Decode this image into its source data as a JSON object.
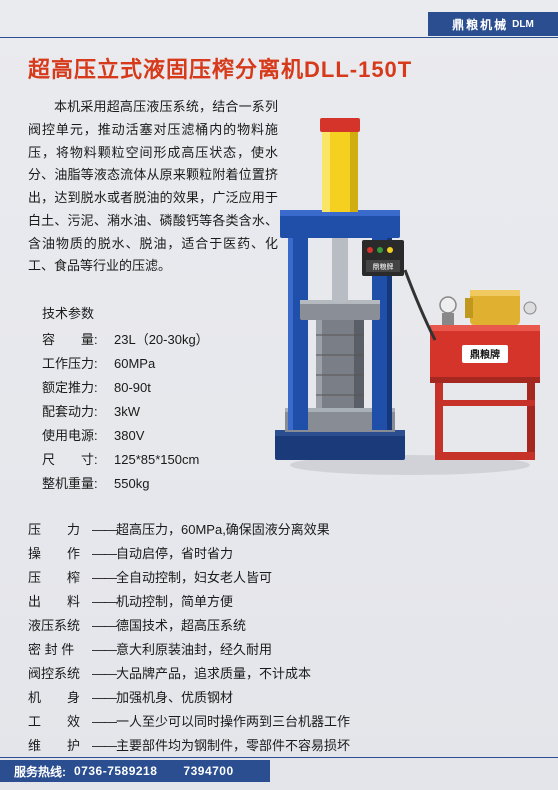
{
  "header": {
    "brand_cn": "鼎粮机械",
    "brand_en": "DLM"
  },
  "title": "超高压立式液固压榨分离机DLL-150T",
  "description": "本机采用超高压液压系统，结合一系列阀控单元，推动活塞对压滤桶内的物料施压，将物料颗粒空间形成高压状态，使水分、油脂等液态流体从原来颗粒附着位置挤出，达到脱水或者脱油的效果，广泛应用于白土、污泥、潲水油、磷酸钙等各类含水、含油物质的脱水、脱油，适合于医药、化工、食品等行业的压滤。",
  "specs_title": "技术参数",
  "specs": [
    {
      "label": "容　　量:",
      "value": "23L（20-30kg）"
    },
    {
      "label": "工作压力:",
      "value": "60MPa"
    },
    {
      "label": "额定推力:",
      "value": "80-90t"
    },
    {
      "label": "配套动力:",
      "value": "3kW"
    },
    {
      "label": "使用电源:",
      "value": "380V"
    },
    {
      "label": "尺　　寸:",
      "value": "125*85*150cm"
    },
    {
      "label": "整机重量:",
      "value": "550kg"
    }
  ],
  "features": [
    {
      "label": "压　　力",
      "value": "超高压力，60MPa,确保固液分离效果"
    },
    {
      "label": "操　　作",
      "value": "自动启停，省时省力"
    },
    {
      "label": "压　　榨",
      "value": "全自动控制，妇女老人皆可"
    },
    {
      "label": "出　　料",
      "value": "机动控制，简单方便"
    },
    {
      "label": "液压系统",
      "value": "德国技术，超高压系统"
    },
    {
      "label": "密 封 件",
      "value": "意大利原装油封，经久耐用"
    },
    {
      "label": "阀控系统",
      "value": "大品牌产品，追求质量，不计成本"
    },
    {
      "label": "机　　身",
      "value": "加强机身、优质钢材"
    },
    {
      "label": "工　　效",
      "value": "一人至少可以同时操作两到三台机器工作"
    },
    {
      "label": "维　　护",
      "value": "主要部件均为钢制件，零部件不容易损坏"
    }
  ],
  "footer": {
    "hotline_label": "服务热线:",
    "phone1": "0736-7589218",
    "phone2": "7394700"
  },
  "colors": {
    "title_color": "#d63a1a",
    "brand_blue": "#2a4e8f",
    "text_color": "#1a1a1a",
    "bg": "#e8e9ed",
    "machine_blue": "#1f4fa8",
    "machine_yellow": "#f5d020",
    "pump_red": "#d4342a",
    "pump_frame": "#c73228",
    "steel": "#a8adb4"
  },
  "machine": {
    "press_body_color": "#1f4fa8",
    "cylinder_color": "#f5d020",
    "cylinder_cap_color": "#d4342a",
    "base_color": "#1a3a7a",
    "piston_color": "#9fa4ab",
    "panel_color": "#2a2a2a",
    "panel_brand": "鼎粮牌",
    "pump_body_color": "#d4342a",
    "pump_frame_color": "#c73228",
    "motor_color": "#e0b030",
    "brand_plate_bg": "#ffffff"
  }
}
